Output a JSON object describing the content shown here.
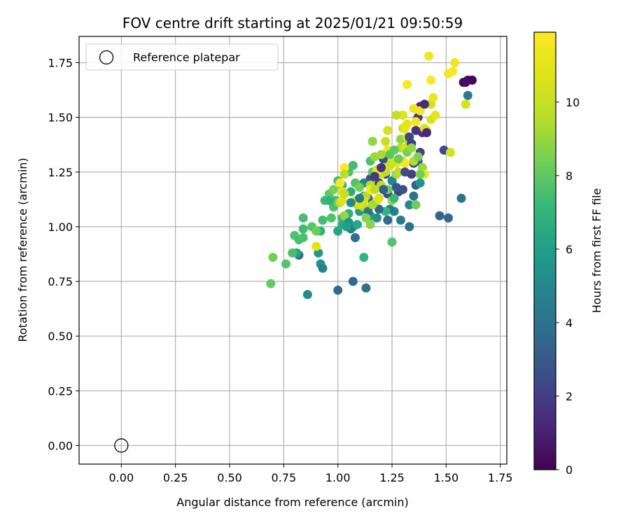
{
  "chart_data": {
    "type": "scatter",
    "title": "FOV centre drift starting at 2025/01/21 09:50:59",
    "xlabel": "Angular distance from reference (arcmin)",
    "ylabel": "Rotation from reference (arcmin)",
    "xlim": [
      -0.195,
      1.78
    ],
    "ylim": [
      -0.085,
      1.87
    ],
    "xticks": [
      "0.00",
      "0.25",
      "0.50",
      "0.75",
      "1.00",
      "1.25",
      "1.50",
      "1.75"
    ],
    "yticks": [
      "0.00",
      "0.25",
      "0.50",
      "0.75",
      "1.00",
      "1.25",
      "1.50",
      "1.75"
    ],
    "grid": true,
    "legend": {
      "placement": "top-left",
      "entries": [
        "Reference platepar"
      ]
    },
    "reference_point": {
      "x": 0.0,
      "y": 0.0,
      "name": "Reference platepar"
    },
    "colorbar": {
      "label": "Hours from first FF file",
      "range": [
        0,
        11.9
      ],
      "ticks": [
        "0",
        "2",
        "4",
        "6",
        "8",
        "10"
      ],
      "colormap": "viridis"
    },
    "points": [
      [
        1.58,
        1.66,
        0.2
      ],
      [
        1.6,
        1.67,
        0.3
      ],
      [
        1.62,
        1.67,
        0.1
      ],
      [
        1.59,
        1.66,
        0.4
      ],
      [
        1.6,
        1.6,
        4.5
      ],
      [
        1.57,
        1.13,
        4.2
      ],
      [
        1.51,
        1.04,
        3.6
      ],
      [
        1.47,
        1.05,
        3.4
      ],
      [
        1.49,
        1.35,
        2.5
      ],
      [
        1.38,
        1.55,
        1.5
      ],
      [
        1.37,
        1.5,
        1.8
      ],
      [
        1.36,
        1.44,
        1.6
      ],
      [
        1.39,
        1.43,
        1.7
      ],
      [
        1.38,
        1.34,
        2.3
      ],
      [
        1.37,
        1.3,
        3.1
      ],
      [
        1.35,
        1.29,
        2.8
      ],
      [
        1.34,
        1.24,
        2.0
      ],
      [
        1.36,
        1.19,
        3.4
      ],
      [
        1.39,
        1.27,
        3.3
      ],
      [
        1.38,
        1.2,
        5.5
      ],
      [
        1.35,
        1.14,
        4.1
      ],
      [
        1.33,
        1.1,
        5.0
      ],
      [
        1.33,
        1.0,
        4.0
      ],
      [
        1.29,
        1.03,
        4.3
      ],
      [
        1.26,
        1.07,
        4.8
      ],
      [
        1.23,
        1.03,
        3.8
      ],
      [
        1.24,
        1.08,
        4.5
      ],
      [
        1.23,
        1.15,
        2.5
      ],
      [
        1.28,
        1.16,
        2.1
      ],
      [
        1.25,
        1.21,
        4.9
      ],
      [
        1.22,
        1.24,
        1.9
      ],
      [
        1.21,
        1.31,
        2.6
      ],
      [
        1.24,
        1.29,
        3.9
      ],
      [
        1.19,
        1.2,
        2.4
      ],
      [
        1.15,
        1.22,
        2.7
      ],
      [
        1.14,
        1.13,
        3.6
      ],
      [
        1.18,
        1.04,
        5.3
      ],
      [
        1.15,
        1.05,
        5.7
      ],
      [
        1.12,
        1.14,
        6.2
      ],
      [
        1.1,
        1.07,
        5.9
      ],
      [
        1.07,
        1.0,
        4.9
      ],
      [
        1.08,
        0.95,
        3.9
      ],
      [
        1.06,
        0.99,
        4.6
      ],
      [
        1.12,
        1.2,
        5.0
      ],
      [
        1.05,
        1.06,
        6.8
      ],
      [
        1.06,
        1.16,
        6.7
      ],
      [
        1.02,
        1.04,
        7.2
      ],
      [
        1.0,
        0.98,
        6.3
      ],
      [
        1.02,
        1.01,
        6.6
      ],
      [
        0.98,
        1.09,
        7.6
      ],
      [
        0.96,
        1.15,
        7.9
      ],
      [
        0.99,
        1.12,
        7.4
      ],
      [
        1.02,
        1.19,
        7.0
      ],
      [
        1.0,
        1.21,
        7.5
      ],
      [
        0.97,
        1.04,
        7.7
      ],
      [
        0.94,
        1.12,
        7.3
      ],
      [
        0.93,
        1.03,
        7.4
      ],
      [
        0.92,
        0.98,
        6.9
      ],
      [
        0.91,
        0.88,
        5.7
      ],
      [
        0.92,
        0.83,
        5.5
      ],
      [
        0.93,
        0.81,
        4.8
      ],
      [
        0.86,
        0.69,
        5.1
      ],
      [
        1.0,
        0.71,
        3.7
      ],
      [
        1.07,
        0.75,
        3.6
      ],
      [
        1.13,
        0.72,
        4.0
      ],
      [
        1.12,
        0.86,
        7.0
      ],
      [
        0.82,
        0.87,
        3.9
      ],
      [
        0.81,
        0.88,
        6.2
      ],
      [
        0.79,
        0.88,
        7.6
      ],
      [
        0.8,
        0.96,
        7.7
      ],
      [
        0.82,
        0.94,
        7.5
      ],
      [
        0.84,
        0.95,
        7.6
      ],
      [
        0.84,
        0.99,
        7.4
      ],
      [
        0.84,
        1.04,
        7.5
      ],
      [
        0.88,
        1.0,
        7.8
      ],
      [
        0.9,
        0.98,
        8.3
      ],
      [
        0.7,
        0.86,
        8.4
      ],
      [
        0.69,
        0.74,
        8.1
      ],
      [
        0.76,
        0.83,
        7.8
      ],
      [
        0.9,
        0.91,
        10.9
      ],
      [
        0.96,
        1.14,
        8.0
      ],
      [
        0.98,
        1.17,
        8.5
      ],
      [
        1.0,
        1.11,
        8.2
      ],
      [
        1.03,
        1.05,
        8.9
      ],
      [
        1.05,
        1.25,
        7.6
      ],
      [
        1.07,
        1.28,
        7.4
      ],
      [
        1.08,
        1.2,
        7.8
      ],
      [
        1.1,
        1.18,
        8.4
      ],
      [
        1.12,
        1.09,
        9.6
      ],
      [
        1.13,
        1.14,
        9.4
      ],
      [
        1.14,
        1.08,
        10.2
      ],
      [
        1.12,
        1.12,
        10.5
      ],
      [
        1.15,
        1.19,
        9.6
      ],
      [
        1.16,
        1.25,
        8.1
      ],
      [
        1.15,
        1.3,
        7.6
      ],
      [
        1.16,
        1.39,
        8.9
      ],
      [
        1.17,
        1.32,
        9.1
      ],
      [
        1.18,
        1.26,
        9.9
      ],
      [
        1.2,
        1.24,
        10.5
      ],
      [
        1.22,
        1.25,
        9.6
      ],
      [
        1.23,
        1.17,
        8.3
      ],
      [
        1.2,
        1.19,
        9.7
      ],
      [
        1.19,
        1.13,
        10.4
      ],
      [
        1.18,
        1.12,
        10.8
      ],
      [
        1.22,
        1.07,
        7.1
      ],
      [
        1.25,
        0.93,
        7.8
      ],
      [
        1.25,
        1.12,
        9.0
      ],
      [
        1.26,
        1.13,
        7.2
      ],
      [
        1.27,
        1.24,
        9.2
      ],
      [
        1.28,
        1.25,
        9.8
      ],
      [
        1.29,
        1.36,
        9.4
      ],
      [
        1.29,
        1.4,
        8.9
      ],
      [
        1.3,
        1.45,
        10.1
      ],
      [
        1.3,
        1.51,
        10.6
      ],
      [
        1.31,
        1.45,
        11.2
      ],
      [
        1.32,
        1.47,
        11.0
      ],
      [
        1.32,
        1.41,
        10.7
      ],
      [
        1.31,
        1.36,
        10.4
      ],
      [
        1.3,
        1.3,
        10.1
      ],
      [
        1.31,
        1.29,
        11.7
      ],
      [
        1.27,
        1.29,
        11.2
      ],
      [
        1.25,
        1.3,
        10.8
      ],
      [
        1.23,
        1.35,
        11.4
      ],
      [
        1.23,
        1.44,
        10.5
      ],
      [
        1.22,
        1.39,
        10.0
      ],
      [
        1.33,
        1.39,
        8.9
      ],
      [
        1.35,
        1.3,
        9.4
      ],
      [
        1.37,
        1.32,
        8.6
      ],
      [
        1.39,
        1.27,
        9.1
      ],
      [
        1.4,
        1.24,
        11.3
      ],
      [
        1.38,
        1.24,
        8.4
      ],
      [
        1.36,
        1.1,
        8.3
      ],
      [
        1.4,
        1.45,
        10.8
      ],
      [
        1.41,
        1.44,
        10.4
      ],
      [
        1.43,
        1.49,
        10.6
      ],
      [
        1.43,
        1.56,
        10.3
      ],
      [
        1.45,
        1.51,
        11.0
      ],
      [
        1.44,
        1.59,
        11.2
      ],
      [
        1.38,
        1.53,
        11.6
      ],
      [
        1.32,
        1.65,
        11.8
      ],
      [
        1.42,
        1.78,
        11.5
      ],
      [
        1.43,
        1.67,
        11.9
      ],
      [
        1.51,
        1.7,
        11.6
      ],
      [
        1.53,
        1.71,
        11.7
      ],
      [
        1.54,
        1.75,
        11.4
      ],
      [
        1.52,
        1.34,
        10.3
      ],
      [
        1.59,
        1.56,
        10.5
      ],
      [
        1.03,
        1.27,
        11.9
      ],
      [
        1.03,
        1.24,
        9.6
      ],
      [
        1.01,
        1.11,
        9.8
      ],
      [
        1.02,
        1.12,
        11.0
      ],
      [
        1.02,
        1.16,
        10.9
      ],
      [
        1.01,
        1.2,
        11.8
      ],
      [
        0.96,
        1.12,
        6.9
      ],
      [
        1.09,
        1.1,
        9.4
      ],
      [
        1.1,
        1.1,
        10.6
      ],
      [
        1.08,
        1.12,
        11.1
      ],
      [
        1.03,
        1.15,
        10.1
      ],
      [
        1.15,
        1.17,
        11.6
      ],
      [
        1.18,
        1.25,
        11.3
      ],
      [
        1.21,
        1.27,
        10.9
      ],
      [
        1.24,
        1.28,
        10.2
      ],
      [
        1.27,
        1.51,
        10.0
      ],
      [
        1.35,
        1.54,
        11.3
      ],
      [
        1.36,
        1.48,
        11.5
      ],
      [
        1.41,
        1.43,
        1.2
      ],
      [
        1.4,
        1.56,
        1.4
      ],
      [
        1.34,
        1.38,
        1.9
      ],
      [
        1.33,
        1.41,
        2.2
      ],
      [
        1.31,
        1.25,
        2.4
      ],
      [
        1.3,
        1.17,
        2.6
      ],
      [
        1.27,
        1.18,
        2.9
      ],
      [
        1.21,
        1.17,
        3.2
      ],
      [
        1.19,
        1.08,
        3.5
      ],
      [
        1.2,
        1.27,
        1.6
      ],
      [
        1.17,
        1.23,
        1.8
      ],
      [
        1.14,
        1.07,
        4.1
      ],
      [
        1.1,
        1.13,
        4.4
      ],
      [
        1.06,
        1.11,
        5.1
      ],
      [
        1.05,
        1.02,
        5.4
      ],
      [
        1.04,
        1.0,
        6.0
      ],
      [
        1.09,
        1.01,
        6.4
      ],
      [
        1.13,
        1.04,
        8.7
      ],
      [
        1.15,
        1.01,
        8.8
      ],
      [
        1.16,
        1.1,
        9.3
      ],
      [
        1.17,
        1.17,
        9.7
      ],
      [
        1.2,
        1.33,
        9.2
      ],
      [
        1.24,
        1.33,
        7.9
      ],
      [
        1.26,
        1.35,
        8.0
      ],
      [
        1.28,
        1.31,
        8.2
      ],
      [
        1.32,
        1.34,
        8.5
      ],
      [
        1.34,
        1.36,
        9.0
      ]
    ]
  }
}
